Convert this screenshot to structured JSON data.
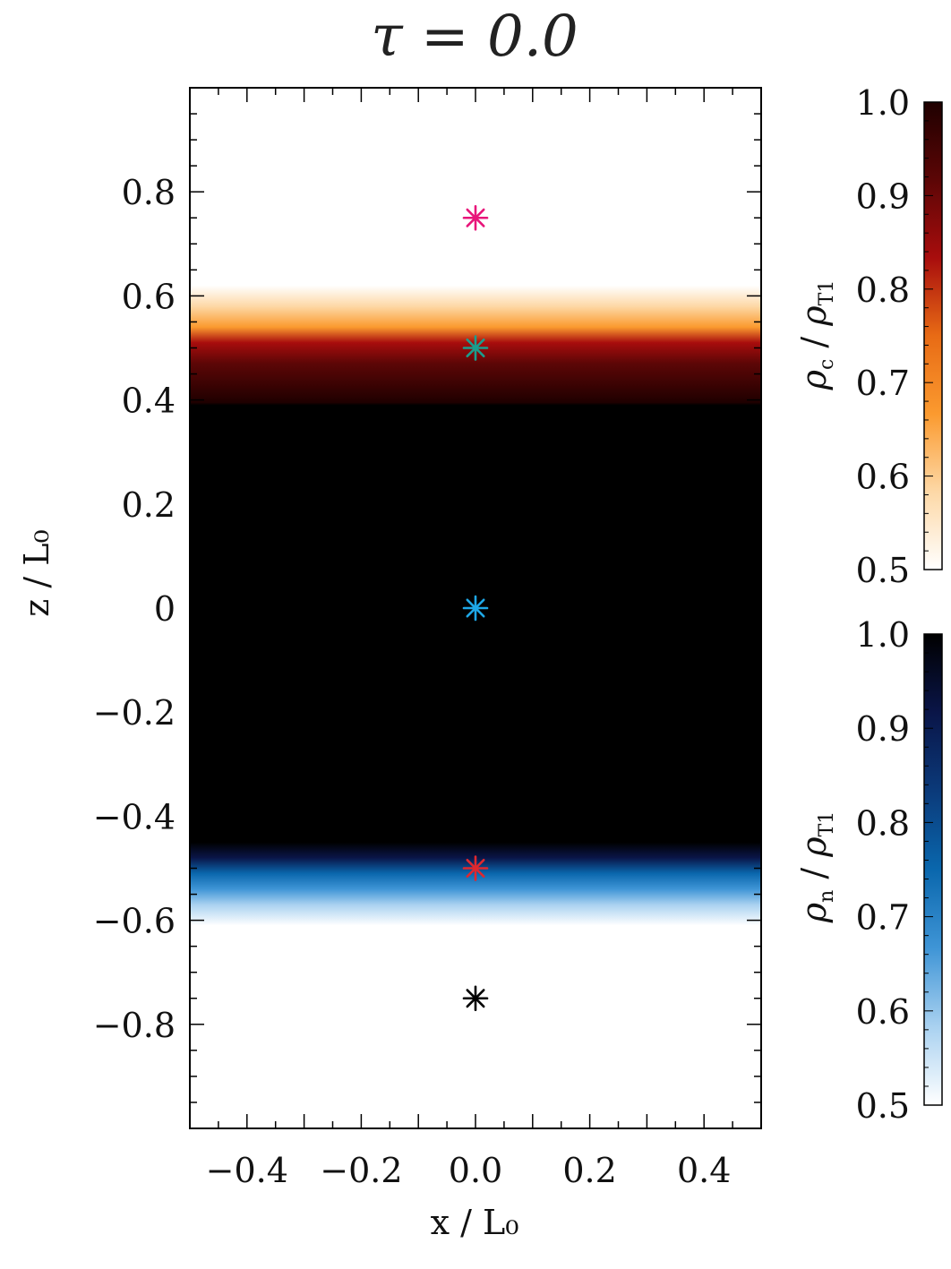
{
  "chart_data": {
    "type": "heatmap",
    "title": "τ = 0.0",
    "xlabel": "x / L₀",
    "ylabel": "z / L₀",
    "xlim": [
      -0.5,
      0.5
    ],
    "ylim": [
      -1.0,
      1.0
    ],
    "x_ticks": [
      "−0.4",
      "−0.2",
      "0.0",
      "0.2",
      "0.4"
    ],
    "x_tick_values": [
      -0.4,
      -0.2,
      0.0,
      0.2,
      0.4
    ],
    "y_ticks": [
      "0.8",
      "0.6",
      "0.4",
      "0.2",
      "0",
      "−0.2",
      "−0.4",
      "−0.6",
      "−0.8"
    ],
    "y_tick_values": [
      0.8,
      0.6,
      0.4,
      0.2,
      0.0,
      -0.2,
      -0.4,
      -0.6,
      -0.8
    ],
    "field_profiles": {
      "charged_layer": {
        "z_dense_bottom": 0.39,
        "z_mid": 0.52,
        "z_top": 0.6
      },
      "neutral_layer": {
        "z_dense_top": -0.45,
        "z_mid": -0.53,
        "z_bottom": -0.61
      }
    },
    "markers": [
      {
        "x": 0.0,
        "z": 0.75,
        "color": "#e8157a"
      },
      {
        "x": 0.0,
        "z": 0.5,
        "color": "#1a9e8e"
      },
      {
        "x": 0.0,
        "z": 0.0,
        "color": "#1ea7e6"
      },
      {
        "x": 0.0,
        "z": -0.5,
        "color": "#e0282e"
      },
      {
        "x": 0.0,
        "z": -0.75,
        "color": "#000000"
      }
    ],
    "colorbars": [
      {
        "name": "charged",
        "label_main": "ρ",
        "label_sub": "c",
        "label_den_main": "ρ",
        "label_den_sub": "T1",
        "range": [
          0.5,
          1.0
        ],
        "ticks": [
          "1.0",
          "0.9",
          "0.8",
          "0.7",
          "0.6",
          "0.5"
        ],
        "tick_values": [
          1.0,
          0.9,
          0.8,
          0.7,
          0.6,
          0.5
        ],
        "colors": [
          "#ffffff",
          "#fdd8a6",
          "#fb9a2f",
          "#e86b15",
          "#a80d0d",
          "#5c0606",
          "#1f0000"
        ]
      },
      {
        "name": "neutral",
        "label_main": "ρ",
        "label_sub": "n",
        "label_den_main": "ρ",
        "label_den_sub": "T1",
        "range": [
          0.5,
          1.0
        ],
        "ticks": [
          "1.0",
          "0.9",
          "0.8",
          "0.7",
          "0.6",
          "0.5"
        ],
        "tick_values": [
          1.0,
          0.9,
          0.8,
          0.7,
          0.6,
          0.5
        ],
        "colors": [
          "#ffffff",
          "#a9d1f0",
          "#3f95d6",
          "#0a67ad",
          "#0b3a7a",
          "#0a1548",
          "#000000"
        ]
      }
    ]
  }
}
